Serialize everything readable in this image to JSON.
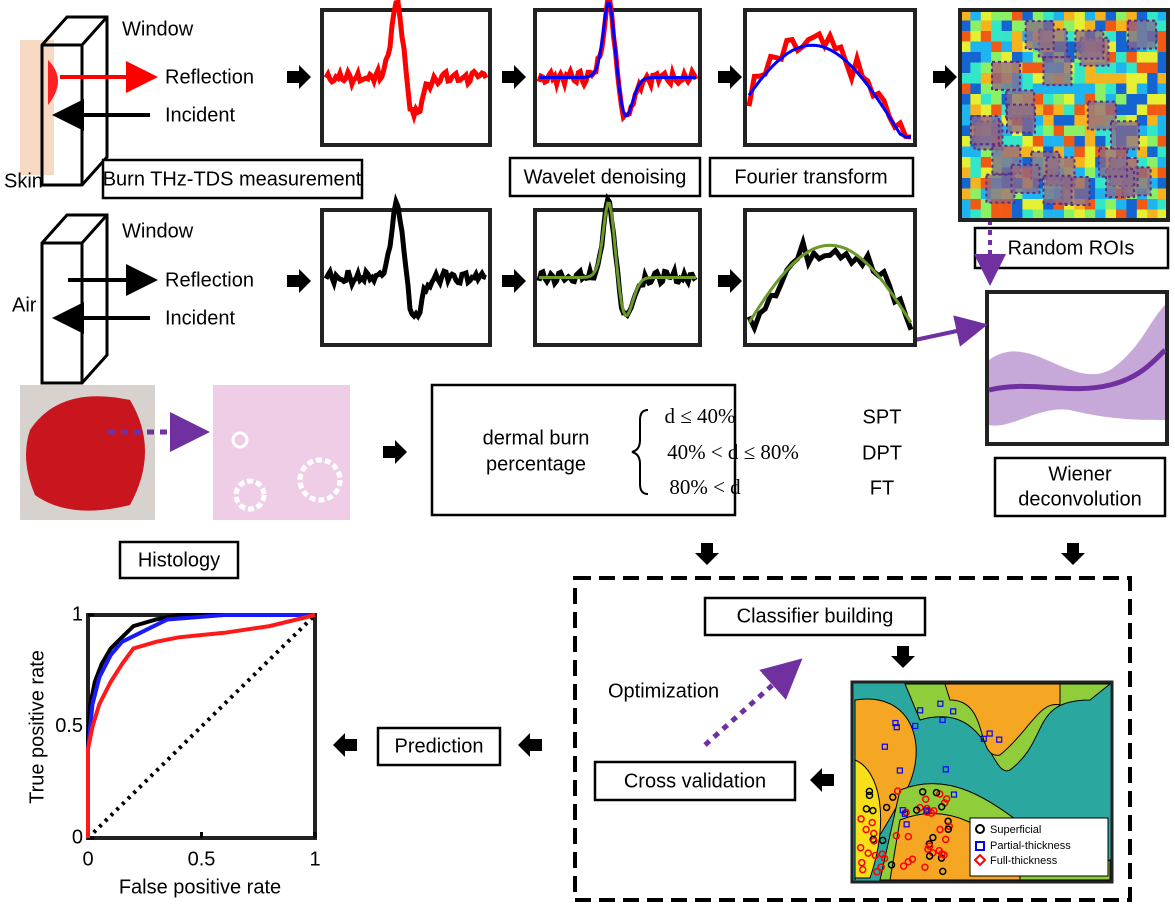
{
  "top": {
    "window": "Window",
    "reflection": "Reflection",
    "incident": "Incident",
    "medium": "Skin",
    "step1": "Burn THz-TDS measurement",
    "step2": "Wavelet denoising",
    "step3": "Fourier transform",
    "step4": "Random ROIs"
  },
  "bottom": {
    "window": "Window",
    "reflection": "Reflection",
    "incident": "Incident",
    "medium": "Air"
  },
  "wiener": [
    "Wiener",
    "deconvolution"
  ],
  "histology": "Histology",
  "classification": {
    "label": [
      "dermal burn",
      "percentage"
    ],
    "rows": [
      [
        "d ≤ 40%",
        "SPT"
      ],
      [
        "40% < d ≤ 80%",
        "DPT"
      ],
      [
        "80% < d",
        "FT"
      ]
    ]
  },
  "training": {
    "building": "Classifier building",
    "optimization": "Optimization",
    "validation": "Cross validation",
    "legend": [
      "Superficial",
      "Partial-thickness",
      "Full-thickness"
    ]
  },
  "prediction": "Prediction",
  "roc": {
    "xlabel": "False positive rate",
    "ylabel": "True positive rate",
    "xlim": [
      0,
      1
    ],
    "ylim": [
      0,
      1
    ],
    "xticks": [
      0,
      0.5,
      1
    ],
    "yticks": [
      0,
      0.5,
      1
    ],
    "series": [
      {
        "color": "#000000",
        "x": [
          0,
          0,
          0.01,
          0.03,
          0.06,
          0.1,
          0.15,
          0.2,
          0.3,
          0.4,
          1
        ],
        "values": [
          0,
          0.45,
          0.6,
          0.7,
          0.78,
          0.85,
          0.9,
          0.95,
          0.98,
          1,
          1
        ]
      },
      {
        "color": "#1a1aff",
        "x": [
          0,
          0,
          0.02,
          0.05,
          0.1,
          0.15,
          0.25,
          0.35,
          0.6,
          1
        ],
        "values": [
          0,
          0.4,
          0.6,
          0.72,
          0.82,
          0.88,
          0.93,
          0.98,
          1,
          1
        ]
      },
      {
        "color": "#ff1a1a",
        "x": [
          0,
          0,
          0.02,
          0.05,
          0.1,
          0.15,
          0.2,
          0.3,
          0.4,
          0.6,
          0.8,
          1
        ],
        "values": [
          0,
          0.4,
          0.5,
          0.6,
          0.7,
          0.78,
          0.85,
          0.88,
          0.9,
          0.92,
          0.95,
          1
        ]
      }
    ]
  }
}
